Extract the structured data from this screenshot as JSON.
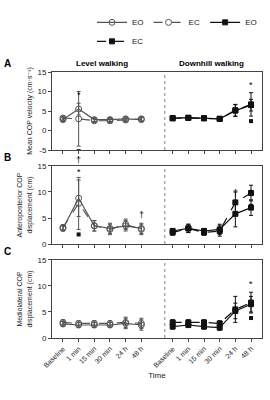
{
  "chart_data": [
    {
      "type": "line",
      "title": "A",
      "ylabel": "Mean COP velocity (cm·s⁻¹)",
      "categories": [
        "Baseline",
        "1 min",
        "15 min",
        "30 min",
        "24 h",
        "48 h",
        null,
        "Baseline",
        "1 min",
        "15 min",
        "30 min",
        "24 h",
        "48 h"
      ],
      "ylim": [
        -5,
        15
      ],
      "yticks": [
        -5,
        0,
        5,
        10,
        15
      ],
      "grid": false,
      "legend": "upper right",
      "tick_labels": "y",
      "series": [
        {
          "name": "EO",
          "color": "#555555",
          "marker": "circle-open",
          "line_style": "solid",
          "values": [
            2.8,
            5.5,
            2.8,
            2.8,
            3.0,
            2.8,
            null,
            null,
            null,
            null,
            null,
            null,
            null
          ],
          "errors": [
            0.5,
            1.5,
            0.5,
            0.5,
            0.5,
            0.5,
            null,
            null,
            null,
            null,
            null,
            null,
            null
          ]
        },
        {
          "name": "EC",
          "color": "#555555",
          "marker": "circle-open",
          "line_style": "dash",
          "values": [
            3.2,
            3.0,
            2.5,
            2.5,
            2.7,
            3.0,
            null,
            null,
            null,
            null,
            null,
            null,
            null
          ],
          "errors": [
            0.5,
            7.0,
            0.5,
            0.5,
            0.5,
            0.5,
            null,
            null,
            null,
            null,
            null,
            null,
            null
          ]
        },
        {
          "name": "EO",
          "color": "#111111",
          "marker": "square",
          "line_style": "solid",
          "values": [
            null,
            null,
            null,
            null,
            null,
            null,
            null,
            3.2,
            3.3,
            3.2,
            3.0,
            5.1,
            6.5
          ],
          "errors": [
            null,
            null,
            null,
            null,
            null,
            null,
            null,
            0.4,
            0.5,
            0.4,
            0.4,
            1.5,
            1.5
          ]
        },
        {
          "name": "EC",
          "color": "#111111",
          "marker": "square",
          "line_style": "dash",
          "values": [
            null,
            null,
            null,
            null,
            null,
            null,
            null,
            3.1,
            3.2,
            3.1,
            3.0,
            5.2,
            6.7
          ],
          "errors": [
            null,
            null,
            null,
            null,
            null,
            null,
            null,
            0.4,
            0.5,
            0.4,
            0.4,
            1.5,
            3.0
          ]
        }
      ],
      "annotations": [
        {
          "text": "Level walking",
          "series": 0,
          "position": "top"
        },
        {
          "text": "Downhill walking",
          "series": 2,
          "position": "top"
        },
        {
          "text": "*",
          "series": 0,
          "index": 1,
          "position": "above"
        },
        {
          "marker": "square",
          "color": "#111111",
          "series": 1,
          "index": 1,
          "position": "below"
        },
        {
          "text": "*",
          "series": 3,
          "index": 12,
          "position": "above"
        },
        {
          "marker": "square",
          "color": "#111111",
          "series": 3,
          "index": 12,
          "position": "below"
        }
      ]
    },
    {
      "type": "line",
      "title": "B",
      "ylabel": "Anteroposterior COP\ndisplacement (cm)",
      "categories": [
        "Baseline",
        "1 min",
        "15 min",
        "30 min",
        "24 h",
        "48 h",
        null,
        "Baseline",
        "1 min",
        "15 min",
        "30 min",
        "24 h",
        "48 h"
      ],
      "ylim": [
        0,
        15
      ],
      "yticks": [
        0,
        5,
        10,
        15
      ],
      "grid": false,
      "legend": false,
      "tick_labels": "y",
      "series": [
        {
          "name": "EO",
          "color": "#555555",
          "marker": "circle-open",
          "line_style": "solid",
          "values": [
            3.0,
            8.8,
            3.5,
            3.0,
            3.5,
            3.0,
            null,
            null,
            null,
            null,
            null,
            null,
            null
          ],
          "errors": [
            0.5,
            3.5,
            1.0,
            1.0,
            1.0,
            1.0,
            null,
            null,
            null,
            null,
            null,
            null,
            null
          ]
        },
        {
          "name": "EC",
          "color": "#555555",
          "marker": "circle-open",
          "line_style": "dash",
          "values": [
            3.2,
            7.8,
            3.5,
            2.8,
            3.8,
            2.8,
            null,
            null,
            null,
            null,
            null,
            null,
            null
          ],
          "errors": [
            0.5,
            5.0,
            1.0,
            1.0,
            1.0,
            1.0,
            null,
            null,
            null,
            null,
            null,
            null,
            null
          ]
        },
        {
          "name": "EO",
          "color": "#111111",
          "marker": "square",
          "line_style": "solid",
          "values": [
            null,
            null,
            null,
            null,
            null,
            null,
            null,
            2.5,
            3.0,
            2.5,
            2.8,
            5.8,
            7.0
          ],
          "errors": [
            null,
            null,
            null,
            null,
            null,
            null,
            null,
            0.5,
            0.8,
            0.5,
            1.0,
            2.5,
            1.5
          ]
        },
        {
          "name": "EC",
          "color": "#111111",
          "marker": "square",
          "line_style": "dash",
          "values": [
            null,
            null,
            null,
            null,
            null,
            null,
            null,
            2.2,
            3.0,
            2.2,
            2.5,
            8.0,
            9.8
          ],
          "errors": [
            null,
            null,
            null,
            null,
            null,
            null,
            null,
            0.5,
            0.8,
            0.5,
            1.0,
            2.0,
            1.5
          ]
        }
      ],
      "annotations": [
        {
          "text": "*",
          "series": 0,
          "index": 1,
          "position": "above"
        },
        {
          "text": "†",
          "series": 1,
          "index": 1,
          "position": "above"
        },
        {
          "marker": "square",
          "color": "#111111",
          "series": 1,
          "index": 1,
          "position": "below"
        },
        {
          "text": "†",
          "series": 0,
          "index": 5,
          "position": "above"
        },
        {
          "text": "†",
          "series": 2,
          "index": 11,
          "position": "above"
        },
        {
          "text": "*",
          "series": 2,
          "index": 12,
          "position": "above"
        },
        {
          "marker": "square",
          "color": "#111111",
          "series": 3,
          "index": 12,
          "position": "below"
        }
      ]
    },
    {
      "type": "line",
      "title": "C",
      "ylabel": "Mediolateral COP\ndisplacement (cm)",
      "xlabel": "Time",
      "categories": [
        "Baseline",
        "1 min",
        "15 min",
        "30 min",
        "24 h",
        "48 h",
        null,
        "Baseline",
        "1 min",
        "15 min",
        "30 min",
        "24 h",
        "48 h"
      ],
      "ylim": [
        0,
        15
      ],
      "yticks": [
        0,
        5,
        10,
        15
      ],
      "grid": false,
      "legend": false,
      "series": [
        {
          "name": "EO",
          "color": "#555555",
          "marker": "circle-open",
          "line_style": "solid",
          "values": [
            2.7,
            2.5,
            2.5,
            2.5,
            2.8,
            2.5,
            null,
            null,
            null,
            null,
            null,
            null,
            null
          ],
          "errors": [
            0.5,
            0.5,
            0.5,
            0.5,
            1.0,
            1.0,
            null,
            null,
            null,
            null,
            null,
            null,
            null
          ]
        },
        {
          "name": "EC",
          "color": "#555555",
          "marker": "circle-open",
          "line_style": "dash",
          "values": [
            3.0,
            2.8,
            2.8,
            2.8,
            3.0,
            2.8,
            null,
            null,
            null,
            null,
            null,
            null,
            null
          ],
          "errors": [
            0.5,
            0.5,
            0.5,
            0.5,
            1.0,
            1.0,
            null,
            null,
            null,
            null,
            null,
            null,
            null
          ]
        },
        {
          "name": "EO",
          "color": "#111111",
          "marker": "square",
          "line_style": "solid",
          "values": [
            null,
            null,
            null,
            null,
            null,
            null,
            null,
            2.2,
            2.5,
            2.2,
            2.0,
            5.2,
            6.5
          ],
          "errors": [
            null,
            null,
            null,
            null,
            null,
            null,
            null,
            0.5,
            0.5,
            0.5,
            0.5,
            1.5,
            1.5
          ]
        },
        {
          "name": "EC",
          "color": "#111111",
          "marker": "square",
          "line_style": "dash",
          "values": [
            null,
            null,
            null,
            null,
            null,
            null,
            null,
            3.0,
            3.0,
            3.0,
            2.8,
            5.5,
            6.8
          ],
          "errors": [
            null,
            null,
            null,
            null,
            null,
            null,
            null,
            0.5,
            0.5,
            0.5,
            0.5,
            2.5,
            2.0
          ]
        }
      ],
      "annotations": [
        {
          "text": "*",
          "series": 3,
          "index": 12,
          "position": "above"
        },
        {
          "marker": "square",
          "color": "#111111",
          "series": 3,
          "index": 12,
          "position": "below"
        }
      ]
    }
  ]
}
